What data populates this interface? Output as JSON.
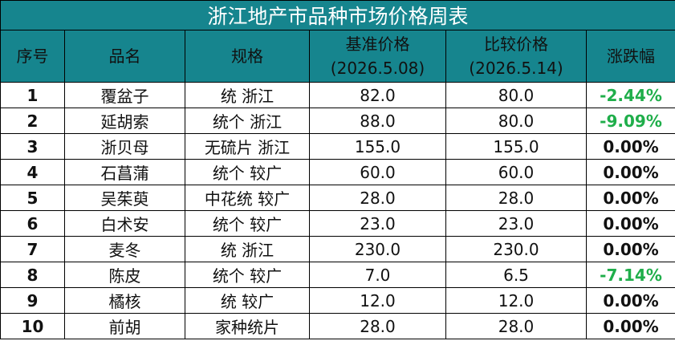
{
  "title": "浙江地产市品种市场价格周表",
  "columns": [
    [
      "序号"
    ],
    [
      "品名"
    ],
    [
      "规格"
    ],
    [
      "基准价格",
      "(2026.5.08)"
    ],
    [
      "比较价格",
      "(2026.5.14)"
    ],
    [
      "涨跌幅"
    ]
  ],
  "rows": [
    [
      "1",
      "覆盆子",
      "统 浙江",
      "82.0",
      "80.0",
      "-2.44%"
    ],
    [
      "2",
      "延胡索",
      "统个 浙江",
      "88.0",
      "80.0",
      "-9.09%"
    ],
    [
      "3",
      "浙贝母",
      "无硫片 浙江",
      "155.0",
      "155.0",
      "0.00%"
    ],
    [
      "4",
      "石菖蒲",
      "统个 较广",
      "60.0",
      "60.0",
      "0.00%"
    ],
    [
      "5",
      "吴茱萸",
      "中花统 较广",
      "28.0",
      "28.0",
      "0.00%"
    ],
    [
      "6",
      "白术安",
      "统个 较广",
      "23.0",
      "23.0",
      "0.00%"
    ],
    [
      "7",
      "麦冬",
      "统 浙江",
      "230.0",
      "230.0",
      "0.00%"
    ],
    [
      "8",
      "陈皮",
      "统个 较广",
      "7.0",
      "6.5",
      "-7.14%"
    ],
    [
      "9",
      "橘核",
      "统 较广",
      "12.0",
      "12.0",
      "0.00%"
    ],
    [
      "10",
      "前胡",
      "家种统片",
      "28.0",
      "28.0",
      "0.00%"
    ]
  ]
}
